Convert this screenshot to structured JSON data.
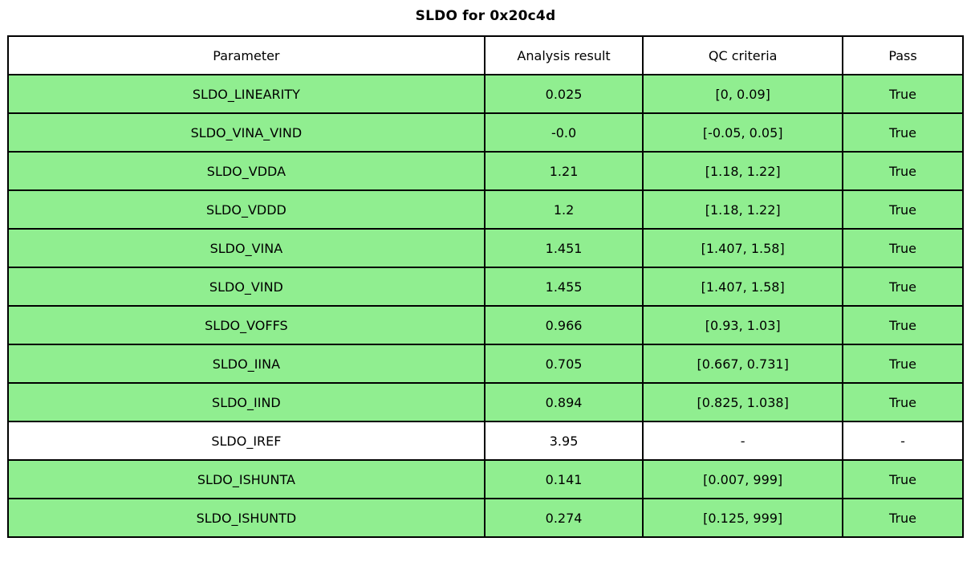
{
  "title": "SLDO for 0x20c4d",
  "chart_data": {
    "type": "table",
    "title": "SLDO for 0x20c4d",
    "columns": [
      "Parameter",
      "Analysis result",
      "QC criteria",
      "Pass"
    ],
    "rows": [
      {
        "parameter": "SLDO_LINEARITY",
        "result": "0.025",
        "criteria": "[0, 0.09]",
        "pass": "True",
        "highlight": true
      },
      {
        "parameter": "SLDO_VINA_VIND",
        "result": "-0.0",
        "criteria": "[-0.05, 0.05]",
        "pass": "True",
        "highlight": true
      },
      {
        "parameter": "SLDO_VDDA",
        "result": "1.21",
        "criteria": "[1.18, 1.22]",
        "pass": "True",
        "highlight": true
      },
      {
        "parameter": "SLDO_VDDD",
        "result": "1.2",
        "criteria": "[1.18, 1.22]",
        "pass": "True",
        "highlight": true
      },
      {
        "parameter": "SLDO_VINA",
        "result": "1.451",
        "criteria": "[1.407, 1.58]",
        "pass": "True",
        "highlight": true
      },
      {
        "parameter": "SLDO_VIND",
        "result": "1.455",
        "criteria": "[1.407, 1.58]",
        "pass": "True",
        "highlight": true
      },
      {
        "parameter": "SLDO_VOFFS",
        "result": "0.966",
        "criteria": "[0.93, 1.03]",
        "pass": "True",
        "highlight": true
      },
      {
        "parameter": "SLDO_IINA",
        "result": "0.705",
        "criteria": "[0.667, 0.731]",
        "pass": "True",
        "highlight": true
      },
      {
        "parameter": "SLDO_IIND",
        "result": "0.894",
        "criteria": "[0.825, 1.038]",
        "pass": "True",
        "highlight": true
      },
      {
        "parameter": "SLDO_IREF",
        "result": "3.95",
        "criteria": "-",
        "pass": "-",
        "highlight": false
      },
      {
        "parameter": "SLDO_ISHUNTA",
        "result": "0.141",
        "criteria": "[0.007, 999]",
        "pass": "True",
        "highlight": true
      },
      {
        "parameter": "SLDO_ISHUNTD",
        "result": "0.274",
        "criteria": "[0.125, 999]",
        "pass": "True",
        "highlight": true
      }
    ],
    "colors": {
      "pass_row_bg": "#90EE90",
      "neutral_row_bg": "#FFFFFF",
      "header_bg": "#FFFFFF",
      "border": "#000000",
      "text": "#000000"
    },
    "legend_position": "none",
    "grid": "full-borders"
  }
}
